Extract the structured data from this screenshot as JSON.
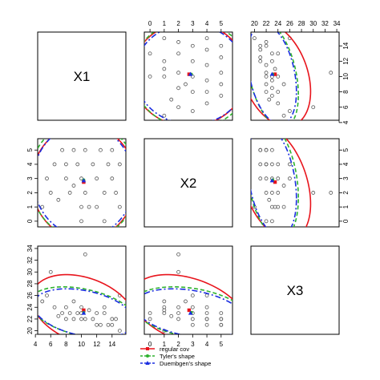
{
  "chart_data": {
    "type": "scatter",
    "layout": "scatterplot-matrix",
    "variables": [
      "X1",
      "X2",
      "X3"
    ],
    "variable_ranges": {
      "X1": [
        4.3,
        15.8
      ],
      "X2": [
        -0.4,
        5.8
      ],
      "X3": [
        19.4,
        34.4
      ]
    },
    "ticks": {
      "X1": [
        "4",
        "6",
        "8",
        "10",
        "12",
        "14"
      ],
      "X2": [
        "0",
        "1",
        "2",
        "3",
        "4",
        "5"
      ],
      "X3": [
        "20",
        "22",
        "24",
        "26",
        "28",
        "30",
        "32",
        "34"
      ]
    },
    "data_points": [
      {
        "X1": 4.9,
        "X2": 1.0,
        "X3": 25.0
      },
      {
        "X1": 5.5,
        "X2": 3.0,
        "X3": 26.0
      },
      {
        "X1": 6.0,
        "X2": 2.0,
        "X3": 30.0
      },
      {
        "X1": 6.5,
        "X2": 4.0,
        "X3": 24.0
      },
      {
        "X1": 7.0,
        "X2": 1.5,
        "X3": 22.5
      },
      {
        "X1": 7.5,
        "X2": 5.0,
        "X3": 23.0
      },
      {
        "X1": 8.0,
        "X2": 3.0,
        "X3": 24.0
      },
      {
        "X1": 8.0,
        "X2": 4.0,
        "X3": 22.0
      },
      {
        "X1": 8.5,
        "X2": 2.0,
        "X3": 23.0
      },
      {
        "X1": 9.0,
        "X2": 5.0,
        "X3": 22.0
      },
      {
        "X1": 9.0,
        "X2": 2.5,
        "X3": 25.0
      },
      {
        "X1": 9.5,
        "X2": 4.0,
        "X3": 23.0
      },
      {
        "X1": 10.0,
        "X2": 1.0,
        "X3": 24.0
      },
      {
        "X1": 10.0,
        "X2": 3.0,
        "X3": 23.0
      },
      {
        "X1": 10.0,
        "X2": 0.0,
        "X3": 22.0
      },
      {
        "X1": 10.5,
        "X2": 2.0,
        "X3": 33.0
      },
      {
        "X1": 10.5,
        "X2": 5.0,
        "X3": 22.0
      },
      {
        "X1": 11.0,
        "X2": 1.0,
        "X3": 23.5
      },
      {
        "X1": 11.5,
        "X2": 4.0,
        "X3": 22.0
      },
      {
        "X1": 12.0,
        "X2": 3.0,
        "X3": 21.0
      },
      {
        "X1": 12.0,
        "X2": 1.0,
        "X3": 23.0
      },
      {
        "X1": 12.5,
        "X2": 5.0,
        "X3": 21.0
      },
      {
        "X1": 13.0,
        "X2": 2.0,
        "X3": 24.0
      },
      {
        "X1": 13.0,
        "X2": 0.0,
        "X3": 23.0
      },
      {
        "X1": 13.5,
        "X2": 4.0,
        "X3": 21.0
      },
      {
        "X1": 14.0,
        "X2": 3.0,
        "X3": 22.0
      },
      {
        "X1": 14.0,
        "X2": 5.0,
        "X3": 21.0
      },
      {
        "X1": 14.5,
        "X2": 2.0,
        "X3": 22.0
      },
      {
        "X1": 15.0,
        "X2": 4.0,
        "X3": 26.0
      },
      {
        "X1": 15.0,
        "X2": 1.0,
        "X3": 20.0
      }
    ],
    "estimators": [
      {
        "name": "regular cov",
        "color": "#e8141c",
        "line_style": "solid",
        "marker": "square",
        "center": {
          "X1": 10.3,
          "X2": 2.75,
          "X3": 23.5
        },
        "sd": {
          "X1": 2.95,
          "X2": 1.75,
          "X3": 2.63
        },
        "cor": {
          "X1-X2": 0.0,
          "X1-X3": -0.33,
          "X2-X3": -0.38
        }
      },
      {
        "name": "Tyler's shape",
        "color": "#2eb22e",
        "line_style": "dashed",
        "marker": "circle",
        "center": {
          "X1": 10.3,
          "X2": 2.9,
          "X3": 23.1
        },
        "sd": {
          "X1": 3.05,
          "X2": 1.8,
          "X3": 1.9
        },
        "cor": {
          "X1-X2": -0.02,
          "X1-X3": -0.38,
          "X2-X3": -0.3
        }
      },
      {
        "name": "Duembgen's shape",
        "color": "#1a2de0",
        "line_style": "dashdot",
        "marker": "triangle",
        "center": {
          "X1": 10.3,
          "X2": 2.85,
          "X3": 23.0
        },
        "sd": {
          "X1": 2.85,
          "X2": 1.7,
          "X3": 1.8
        },
        "cor": {
          "X1-X2": -0.02,
          "X1-X3": -0.34,
          "X2-X3": -0.32
        }
      }
    ],
    "legend": {
      "placement": "bottom-center",
      "entries": [
        "regular cov",
        "Tyler's shape",
        "Duembgen's shape"
      ]
    },
    "grid": false
  }
}
